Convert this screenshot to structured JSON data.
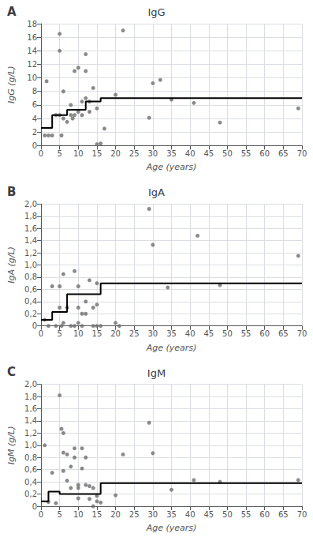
{
  "chart_data": [
    {
      "type": "scatter",
      "title": "IgG",
      "annotations": [
        "A"
      ],
      "x_label": "Age (years)",
      "y_label": "IgG (g/L)",
      "grid": true,
      "xlim": [
        0,
        70
      ],
      "xticks": [
        0,
        5,
        10,
        15,
        20,
        25,
        30,
        35,
        40,
        45,
        50,
        55,
        60,
        65,
        70
      ],
      "ylim": [
        0,
        18
      ],
      "yticks": [
        0,
        2,
        4,
        6,
        8,
        10,
        12,
        14,
        16,
        18
      ],
      "series": [
        {
          "type": "scatter",
          "color": "#6d6d6d",
          "marker": "circle",
          "x": [
            1,
            1.5,
            2,
            3,
            4,
            5,
            5,
            5,
            5.5,
            6,
            6,
            7,
            8,
            8,
            8.5,
            9,
            9,
            10,
            10,
            11,
            11,
            12,
            12,
            12,
            13,
            13,
            14,
            15,
            15,
            16,
            17,
            20,
            22,
            29,
            30,
            32,
            35,
            41,
            48,
            69
          ],
          "values": [
            1.5,
            9.5,
            1.5,
            1.5,
            4.5,
            16.5,
            14,
            4.5,
            1.5,
            8,
            4,
            3.5,
            6,
            4.5,
            4,
            11,
            4.5,
            11.5,
            5,
            4.5,
            6.5,
            13.5,
            11,
            7,
            6.5,
            5,
            8.5,
            5.5,
            0.2,
            0.3,
            2.5,
            7.5,
            17,
            4.1,
            9.2,
            9.7,
            6.8,
            6.3,
            3.4,
            5.5
          ]
        },
        {
          "type": "step",
          "color": "#000000",
          "line_style": "solid",
          "x": [
            0,
            3,
            7,
            12,
            16,
            70
          ],
          "values": [
            2.6,
            4.5,
            5.3,
            6.5,
            7.0,
            7.0
          ]
        }
      ]
    },
    {
      "type": "scatter",
      "title": "IgA",
      "annotations": [
        "B"
      ],
      "x_label": "Age (years)",
      "y_label": "IgA (g/L)",
      "grid": true,
      "xlim": [
        0,
        70
      ],
      "xticks": [
        0,
        5,
        10,
        15,
        20,
        25,
        30,
        35,
        40,
        45,
        50,
        55,
        60,
        65,
        70
      ],
      "ylim": [
        0,
        2
      ],
      "yticks": [
        0,
        {
          "value": 0.2,
          "label": "0,2"
        },
        {
          "value": 0.4,
          "label": "0,4"
        },
        {
          "value": 0.6,
          "label": "0,6"
        },
        {
          "value": 0.8,
          "label": "0,8"
        },
        {
          "value": 1.0,
          "label": "1,0"
        },
        {
          "value": 1.2,
          "label": "1,2"
        },
        {
          "value": 1.4,
          "label": "1,4"
        },
        {
          "value": 1.6,
          "label": "1,6"
        },
        {
          "value": 1.8,
          "label": "1,8"
        },
        {
          "value": 2.0,
          "label": "2,0"
        }
      ],
      "series": [
        {
          "type": "scatter",
          "color": "#6d6d6d",
          "marker": "circle",
          "x": [
            1,
            2,
            3,
            4,
            5,
            5,
            5.5,
            6,
            6,
            7,
            8,
            9,
            9,
            10,
            10,
            10,
            11,
            11,
            12,
            12,
            13,
            14,
            14,
            15,
            15,
            15,
            16,
            20,
            21,
            29,
            30,
            34,
            42,
            48,
            69
          ],
          "values": [
            0.1,
            0.0,
            0.65,
            0.0,
            0.3,
            0.65,
            0.0,
            0.85,
            0.05,
            0.3,
            0.0,
            0.9,
            0.0,
            0.3,
            0.05,
            0.65,
            0.2,
            0.0,
            0.4,
            0.2,
            0.75,
            0.3,
            0.0,
            0.35,
            0.7,
            0.0,
            0.0,
            0.05,
            0.0,
            1.92,
            1.33,
            0.63,
            1.48,
            0.67,
            1.15
          ]
        },
        {
          "type": "step",
          "color": "#000000",
          "line_style": "solid",
          "x": [
            0,
            3,
            7,
            16,
            70
          ],
          "values": [
            0.1,
            0.23,
            0.52,
            0.7,
            0.7
          ]
        }
      ]
    },
    {
      "type": "scatter",
      "title": "IgM",
      "annotations": [
        "C"
      ],
      "x_label": "Age (years)",
      "y_label": "IgM (g/L)",
      "grid": true,
      "xlim": [
        0,
        70
      ],
      "xticks": [
        0,
        5,
        10,
        15,
        20,
        25,
        30,
        35,
        40,
        45,
        50,
        55,
        60,
        65,
        70
      ],
      "ylim": [
        0,
        2
      ],
      "yticks": [
        0,
        {
          "value": 0.2,
          "label": "0,2"
        },
        {
          "value": 0.4,
          "label": "0,4"
        },
        {
          "value": 0.6,
          "label": "0,6"
        },
        {
          "value": 0.8,
          "label": "0,8"
        },
        {
          "value": 1.0,
          "label": "1,0"
        },
        {
          "value": 1.2,
          "label": "1,2"
        },
        {
          "value": 1.4,
          "label": "1,4"
        },
        {
          "value": 1.6,
          "label": "1,6"
        },
        {
          "value": 1.8,
          "label": "1,8"
        },
        {
          "value": 2.0,
          "label": "2,0"
        }
      ],
      "series": [
        {
          "type": "scatter",
          "color": "#6d6d6d",
          "marker": "circle",
          "x": [
            1,
            2,
            3,
            4,
            5,
            5.5,
            6,
            6,
            6,
            7,
            7,
            8,
            8,
            9,
            9,
            10,
            10,
            10,
            11,
            11,
            12,
            12,
            13,
            13,
            14,
            14,
            15,
            15,
            16,
            20,
            22,
            29,
            30,
            35,
            41,
            48,
            69
          ],
          "values": [
            1.0,
            0.07,
            0.55,
            0.05,
            1.82,
            1.27,
            1.2,
            0.88,
            0.58,
            0.85,
            0.42,
            0.65,
            0.3,
            0.95,
            0.8,
            0.3,
            0.35,
            0.13,
            0.95,
            0.62,
            0.8,
            0.35,
            0.33,
            0.12,
            0.3,
            0.0,
            0.17,
            0.08,
            0.06,
            0.18,
            0.85,
            1.37,
            0.87,
            0.27,
            0.43,
            0.4,
            0.43
          ]
        },
        {
          "type": "step",
          "color": "#000000",
          "line_style": "solid",
          "x": [
            0,
            2,
            5,
            16,
            70
          ],
          "values": [
            0.08,
            0.24,
            0.2,
            0.38,
            0.38
          ]
        }
      ]
    }
  ]
}
